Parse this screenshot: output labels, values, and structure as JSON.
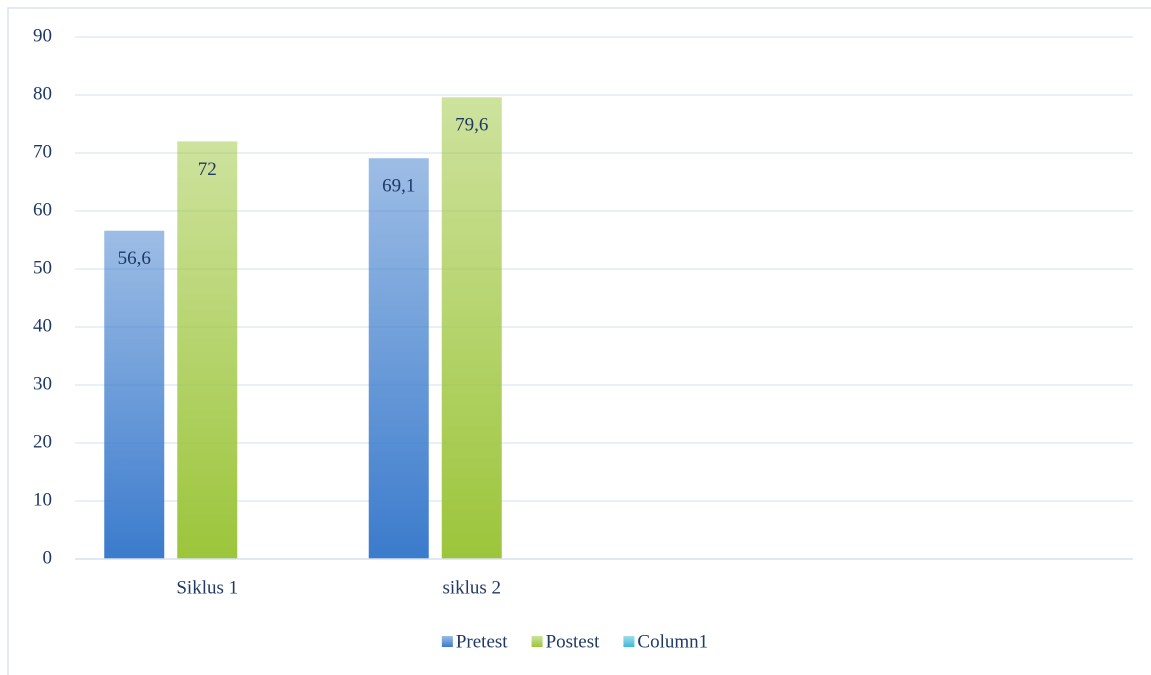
{
  "chart_data": {
    "type": "bar",
    "categories": [
      "Siklus 1",
      "siklus 2",
      null,
      null
    ],
    "series": [
      {
        "name": "Pretest",
        "color": "#3b7bcc",
        "values": [
          56.6,
          69.1,
          null,
          null
        ],
        "value_labels": [
          "56,6",
          "69,1",
          null,
          null
        ]
      },
      {
        "name": "Postest",
        "color": "#9cc53b",
        "values": [
          72,
          79.6,
          null,
          null
        ],
        "value_labels": [
          "72",
          "79,6",
          null,
          null
        ]
      },
      {
        "name": "Column1",
        "color": "#3fb8d8",
        "values": [
          null,
          null,
          null,
          null
        ]
      }
    ],
    "ylim": [
      0,
      90
    ],
    "yticks": [
      0,
      10,
      20,
      30,
      40,
      50,
      60,
      70,
      80,
      90
    ],
    "grid": true,
    "legend": "bottom"
  }
}
